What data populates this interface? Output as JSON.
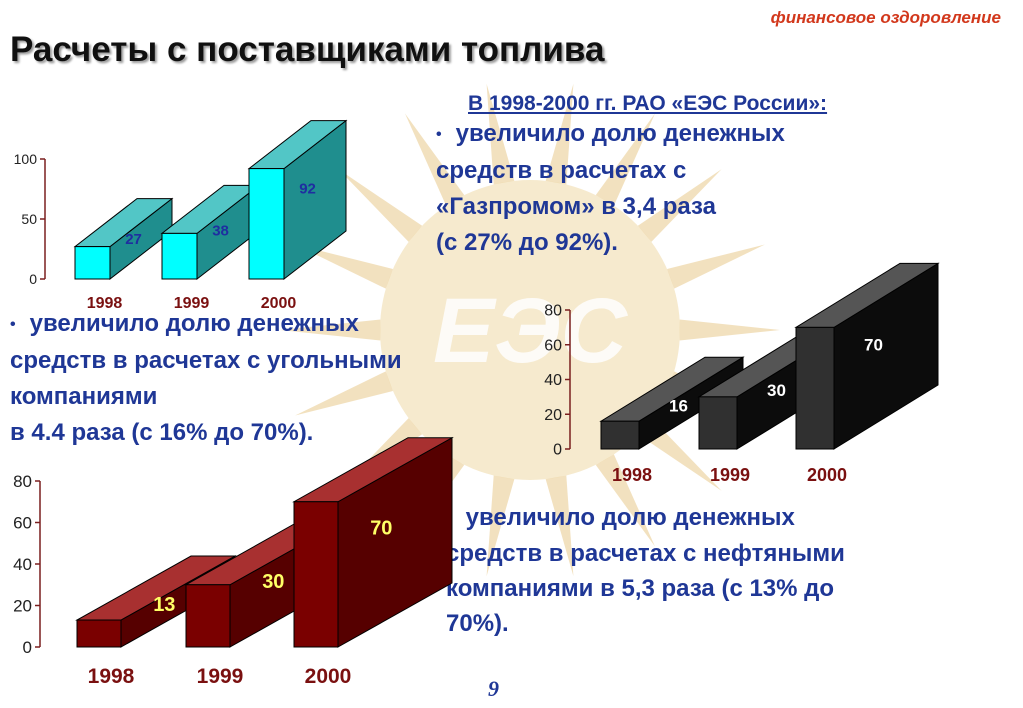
{
  "header": {
    "category_tag": "финансовое оздоровление",
    "title": "Расчеты с поставщиками топлива"
  },
  "intro": "В 1998-2000 гг. РАО «ЕЭС России»:",
  "bullets": {
    "gas": [
      "увеличило долю денежных",
      "средств в расчетах с",
      "«Газпромом» в 3,4 раза",
      "(с 27% до 92%)."
    ],
    "coal": [
      "увеличило долю денежных",
      "средств в расчетах с угольными",
      "компаниями",
      "в 4.4 раза (с 16% до 70%)."
    ],
    "oil": [
      "увеличило долю денежных",
      "средств в расчетах с  нефтяными",
      "компаниями в 5,3 раза  (с 13% до",
      "70%)."
    ]
  },
  "bullet_marker": "•",
  "page_number": "9",
  "watermark": {
    "text": "ЕЭС",
    "color": "#e8c98a"
  },
  "chart_data": [
    {
      "type": "bar",
      "categories": [
        "1998",
        "1999",
        "2000"
      ],
      "values": [
        27,
        38,
        92
      ],
      "ylim": [
        0,
        100
      ],
      "yticks": [
        0,
        50,
        100
      ],
      "title": "",
      "xlabel": "",
      "ylabel": "",
      "colors": {
        "front": "#00ffff",
        "side": "#1f8e8e",
        "top": "#52c6c6",
        "value_label": "#1f2ea0",
        "axis": "#7a1f1f",
        "category_label": "#7a1010"
      }
    },
    {
      "type": "bar",
      "categories": [
        "1998",
        "1999",
        "2000"
      ],
      "values": [
        16,
        30,
        70
      ],
      "ylim": [
        0,
        80
      ],
      "yticks": [
        0,
        20,
        40,
        60,
        80
      ],
      "title": "",
      "xlabel": "",
      "ylabel": "",
      "colors": {
        "front": "#303030",
        "side": "#0c0c0c",
        "top": "#555555",
        "value_label": "#ffffff",
        "axis": "#7a1f1f",
        "category_label": "#7a1010"
      }
    },
    {
      "type": "bar",
      "categories": [
        "1998",
        "1999",
        "2000"
      ],
      "values": [
        13,
        30,
        70
      ],
      "ylim": [
        0,
        80
      ],
      "yticks": [
        0,
        20,
        40,
        60,
        80
      ],
      "title": "",
      "xlabel": "",
      "ylabel": "",
      "colors": {
        "front": "#7a0000",
        "side": "#560000",
        "top": "#a83030",
        "value_label": "#ffff66",
        "axis": "#7a1f1f",
        "category_label": "#7a1010"
      }
    }
  ]
}
